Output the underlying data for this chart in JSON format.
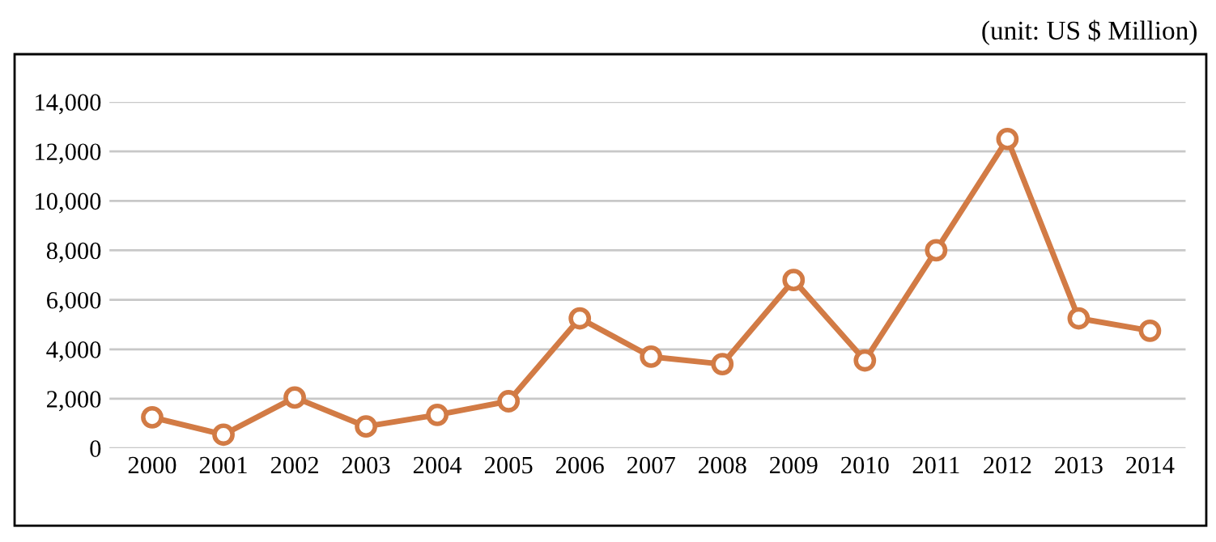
{
  "chart_data": {
    "type": "line",
    "annotations": [
      "(unit: US $ Million)"
    ],
    "categories": [
      "2000",
      "2001",
      "2002",
      "2003",
      "2004",
      "2005",
      "2006",
      "2007",
      "2008",
      "2009",
      "2010",
      "2011",
      "2012",
      "2013",
      "2014"
    ],
    "series": [
      {
        "color": "#d27b45",
        "values": [
          1250,
          550,
          2050,
          880,
          1350,
          1900,
          5250,
          3700,
          3400,
          6800,
          3550,
          8000,
          12500,
          5250,
          4750
        ]
      }
    ],
    "ylim": [
      0,
      14000
    ],
    "yticks": [
      {
        "value": 0,
        "label": "0"
      },
      {
        "value": 2000,
        "label": "2,000"
      },
      {
        "value": 4000,
        "label": "4,000"
      },
      {
        "value": 6000,
        "label": "6,000"
      },
      {
        "value": 8000,
        "label": "8,000"
      },
      {
        "value": 10000,
        "label": "10,000"
      },
      {
        "value": 12000,
        "label": "12,000"
      },
      {
        "value": 14000,
        "label": "14,000"
      }
    ],
    "grid": "y",
    "marker": "circle",
    "line_style": "solid"
  }
}
